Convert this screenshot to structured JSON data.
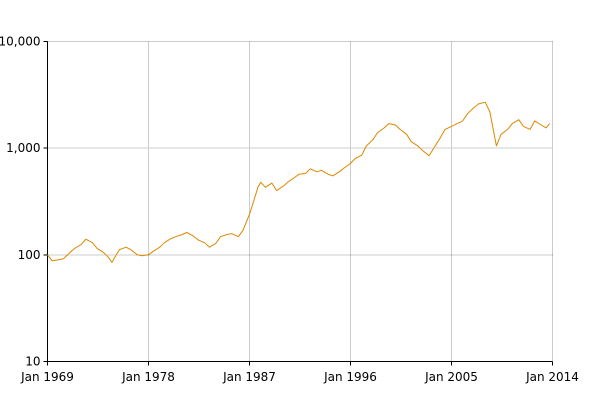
{
  "chart_data": {
    "type": "line",
    "title": "",
    "xlabel": "",
    "ylabel": "",
    "y_scale": "log",
    "ylim": [
      10,
      10000
    ],
    "xlim": [
      "1969-01",
      "2014-01"
    ],
    "grid": true,
    "legend": "none",
    "x_ticks": [
      "Jan 1969",
      "Jan 1978",
      "Jan 1987",
      "Jan 1996",
      "Jan 2005",
      "Jan 2014"
    ],
    "y_ticks": [
      "10",
      "100",
      "1,000",
      "10,000"
    ],
    "colors": {
      "series": "#dd8800",
      "grid": "#999999",
      "axis": "#000000"
    },
    "series": [
      {
        "x": [
          "1969-01",
          "1969-06",
          "1970-01",
          "1970-06",
          "1971-01",
          "1971-06",
          "1972-01",
          "1972-06",
          "1973-01",
          "1973-06",
          "1974-01",
          "1974-06",
          "1974-10",
          "1975-01",
          "1975-06",
          "1976-01",
          "1976-06",
          "1977-01",
          "1977-06",
          "1978-01",
          "1978-06",
          "1979-01",
          "1979-06",
          "1980-01",
          "1980-06",
          "1981-01",
          "1981-06",
          "1982-01",
          "1982-06",
          "1983-01",
          "1983-06",
          "1984-01",
          "1984-06",
          "1985-01",
          "1985-06",
          "1986-01",
          "1986-06",
          "1987-01",
          "1987-06",
          "1987-10",
          "1988-01",
          "1988-06",
          "1989-01",
          "1989-06",
          "1990-01",
          "1990-06",
          "1991-01",
          "1991-06",
          "1992-01",
          "1992-06",
          "1993-01",
          "1993-06",
          "1994-01",
          "1994-06",
          "1995-01",
          "1995-06",
          "1996-01",
          "1996-06",
          "1997-01",
          "1997-06",
          "1998-01",
          "1998-06",
          "1999-01",
          "1999-06",
          "2000-01",
          "2000-06",
          "2001-01",
          "2001-06",
          "2002-01",
          "2002-06",
          "2003-01",
          "2003-06",
          "2004-01",
          "2004-06",
          "2005-01",
          "2005-06",
          "2006-01",
          "2006-06",
          "2007-01",
          "2007-06",
          "2008-01",
          "2008-06",
          "2009-01",
          "2009-06",
          "2010-01",
          "2010-06",
          "2011-01",
          "2011-06",
          "2012-01",
          "2012-06",
          "2013-01",
          "2013-06",
          "2013-10"
        ],
        "y": [
          100,
          88,
          90,
          92,
          105,
          115,
          125,
          140,
          130,
          115,
          105,
          95,
          85,
          95,
          112,
          118,
          112,
          100,
          98,
          100,
          108,
          118,
          130,
          142,
          148,
          155,
          162,
          150,
          138,
          130,
          118,
          128,
          148,
          155,
          158,
          148,
          170,
          240,
          330,
          430,
          480,
          430,
          470,
          400,
          440,
          480,
          530,
          570,
          580,
          640,
          600,
          620,
          570,
          550,
          600,
          650,
          720,
          800,
          860,
          1050,
          1200,
          1400,
          1550,
          1700,
          1650,
          1500,
          1350,
          1150,
          1050,
          950,
          850,
          1000,
          1250,
          1500,
          1600,
          1680,
          1800,
          2100,
          2400,
          2600,
          2700,
          2200,
          1050,
          1350,
          1500,
          1700,
          1850,
          1600,
          1500,
          1800,
          1650,
          1550,
          1700
        ]
      }
    ]
  }
}
